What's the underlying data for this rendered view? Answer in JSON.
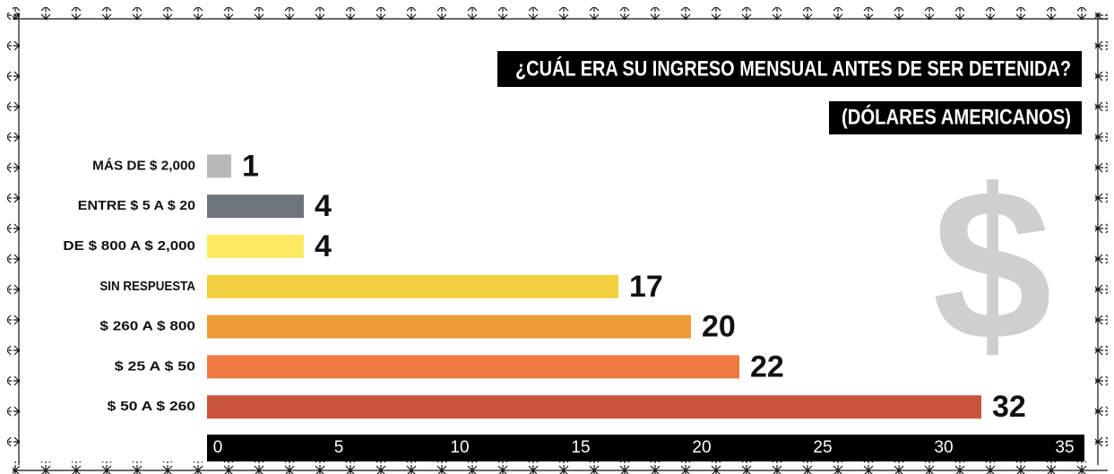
{
  "chart_data": {
    "type": "barh",
    "title": "¿CUÁL ERA SU INGRESO MENSUAL ANTES DE SER DETENIDA?",
    "subtitle": "(DÓLARES AMERICANOS)",
    "symbol": "$",
    "categories": [
      "MÁS DE $ 2,000",
      "ENTRE $ 5 A $ 20",
      "DE $ 800 A $ 2,000",
      "SIN RESPUESTA",
      "$ 260 A $ 800",
      "$ 25 A $ 50",
      "$ 50 A $ 260"
    ],
    "values": [
      1,
      4,
      4,
      17,
      20,
      22,
      32
    ],
    "colors": [
      "#b9b9b9",
      "#6e747e",
      "#fbea62",
      "#f2cf41",
      "#ec9b36",
      "#ee7a41",
      "#c9533c"
    ],
    "xlim": [
      0,
      35
    ],
    "xticks": [
      0,
      5,
      10,
      15,
      20,
      25,
      30,
      35
    ]
  }
}
